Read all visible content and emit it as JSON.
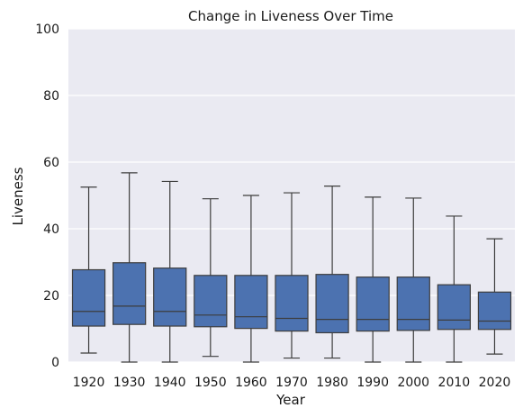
{
  "chart_data": {
    "type": "box",
    "title": "Change in Liveness Over Time",
    "xlabel": "Year",
    "ylabel": "Liveness",
    "ylim": [
      0,
      100
    ],
    "yticks": [
      0,
      20,
      40,
      60,
      80,
      100
    ],
    "grid": true,
    "categories": [
      "1920",
      "1930",
      "1940",
      "1950",
      "1960",
      "1970",
      "1980",
      "1990",
      "2000",
      "2010",
      "2020"
    ],
    "boxes": [
      {
        "whisker_low": 2.7,
        "q1": 10.8,
        "median": 15.2,
        "q3": 27.7,
        "whisker_high": 52.5
      },
      {
        "whisker_low": 0.0,
        "q1": 11.3,
        "median": 16.8,
        "q3": 29.8,
        "whisker_high": 56.8
      },
      {
        "whisker_low": 0.0,
        "q1": 10.8,
        "median": 15.2,
        "q3": 28.2,
        "whisker_high": 54.2
      },
      {
        "whisker_low": 1.7,
        "q1": 10.6,
        "median": 14.1,
        "q3": 26.0,
        "whisker_high": 49.0
      },
      {
        "whisker_low": 0.0,
        "q1": 10.1,
        "median": 13.6,
        "q3": 26.0,
        "whisker_high": 50.0
      },
      {
        "whisker_low": 1.2,
        "q1": 9.3,
        "median": 13.1,
        "q3": 26.0,
        "whisker_high": 50.8
      },
      {
        "whisker_low": 1.2,
        "q1": 8.8,
        "median": 12.8,
        "q3": 26.3,
        "whisker_high": 52.8
      },
      {
        "whisker_low": 0.0,
        "q1": 9.3,
        "median": 12.8,
        "q3": 25.5,
        "whisker_high": 49.5
      },
      {
        "whisker_low": 0.0,
        "q1": 9.5,
        "median": 12.8,
        "q3": 25.5,
        "whisker_high": 49.2
      },
      {
        "whisker_low": 0.0,
        "q1": 9.8,
        "median": 12.6,
        "q3": 23.2,
        "whisker_high": 43.8
      },
      {
        "whisker_low": 2.4,
        "q1": 9.8,
        "median": 12.3,
        "q3": 21.0,
        "whisker_high": 37.0
      }
    ]
  },
  "colors": {
    "plot_background": "#eaeaf2",
    "grid": "#ffffff",
    "box_fill": "#4c72b0",
    "line": "#3d3d3d"
  }
}
